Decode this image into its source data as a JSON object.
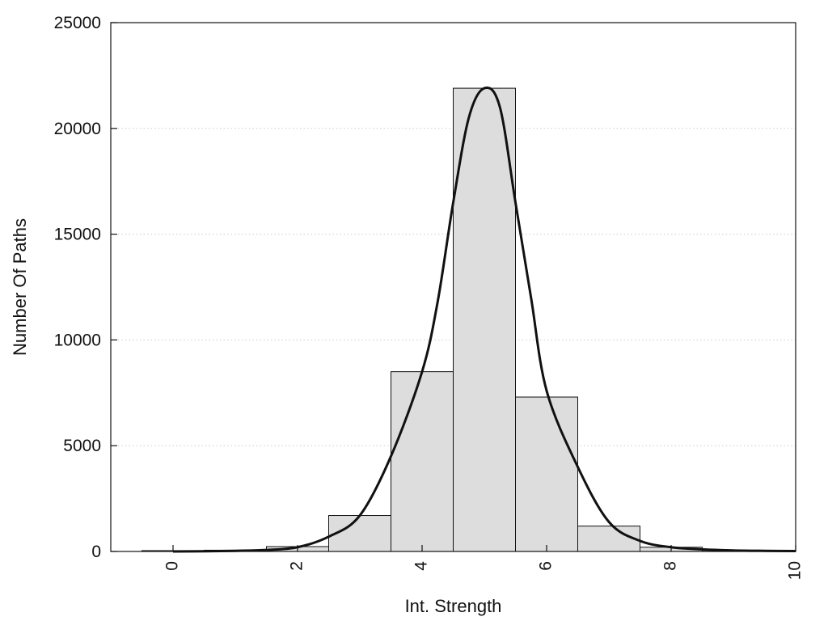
{
  "chart_data": {
    "type": "bar",
    "title": "",
    "xlabel": "Int. Strength",
    "ylabel": "Number Of Paths",
    "xlim": [
      -1,
      10
    ],
    "ylim": [
      0,
      25000
    ],
    "xticks": [
      0,
      2,
      4,
      6,
      8,
      10
    ],
    "yticks": [
      0,
      5000,
      10000,
      15000,
      20000,
      25000
    ],
    "grid": "horizontal-dotted",
    "bar_color": "#dddddd",
    "bar_edge_color": "#111111",
    "line_color": "#111111",
    "bars": {
      "x": [
        0,
        1,
        2,
        3,
        4,
        5,
        6,
        7,
        8,
        9
      ],
      "values": [
        40,
        60,
        230,
        1700,
        8500,
        21900,
        7300,
        1200,
        200,
        50
      ]
    },
    "curve": {
      "x": [
        0,
        0.5,
        1,
        1.5,
        2,
        2.5,
        3,
        3.5,
        4,
        4.25,
        4.5,
        4.75,
        5,
        5.25,
        5.5,
        5.75,
        6,
        6.5,
        7,
        7.5,
        8,
        8.5,
        9,
        9.5,
        10
      ],
      "values": [
        0,
        10,
        30,
        70,
        200,
        700,
        1700,
        4500,
        8500,
        11800,
        16500,
        20500,
        21900,
        21000,
        16500,
        12000,
        7600,
        4000,
        1400,
        500,
        200,
        100,
        50,
        30,
        20
      ]
    }
  }
}
